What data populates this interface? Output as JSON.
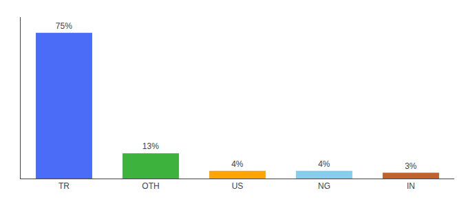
{
  "chart_data": {
    "type": "bar",
    "categories": [
      "TR",
      "OTH",
      "US",
      "NG",
      "IN"
    ],
    "values": [
      75,
      13,
      4,
      4,
      3
    ],
    "value_labels": [
      "75%",
      "13%",
      "4%",
      "4%",
      "3%"
    ],
    "colors": [
      "#4a6cf7",
      "#3db33d",
      "#ffa500",
      "#87ceeb",
      "#c0622a"
    ],
    "ylim": [
      0,
      83
    ],
    "yticks": [],
    "grid": false,
    "data_labels": true,
    "tick_labels": "x"
  }
}
